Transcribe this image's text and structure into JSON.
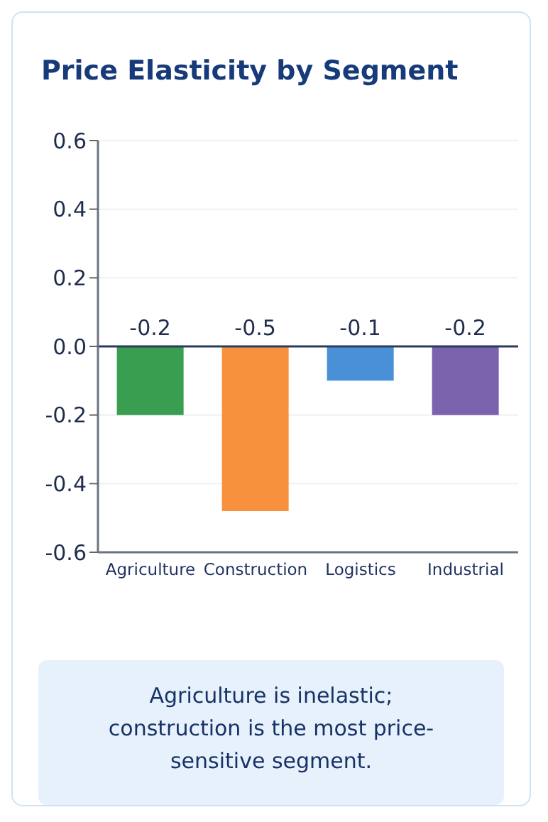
{
  "chart_data": {
    "type": "bar",
    "title": "Price Elasticity by Segment",
    "categories": [
      "Agriculture",
      "Construction",
      "Logistics",
      "Industrial"
    ],
    "values": [
      -0.2,
      -0.48,
      -0.1,
      -0.2
    ],
    "value_labels": [
      "-0.2",
      "-0.5",
      "-0.1",
      "-0.2"
    ],
    "colors": [
      "#3a9e50",
      "#f7913d",
      "#4a90d6",
      "#7b62ad"
    ],
    "ylim": [
      -0.6,
      0.6
    ],
    "yticks": [
      {
        "value": -0.6,
        "label": "-0.6"
      },
      {
        "value": -0.4,
        "label": "-0.4"
      },
      {
        "value": -0.2,
        "label": "-0.2"
      },
      {
        "value": 0,
        "label": "0.0"
      },
      {
        "value": 0.2,
        "label": "0.2"
      },
      {
        "value": 0.4,
        "label": "0.4"
      },
      {
        "value": 0.6,
        "label": "0.6"
      }
    ],
    "grid": "y",
    "ref_lines": [
      {
        "axis": "y",
        "value": 0,
        "color": "#2a3a5c"
      }
    ],
    "annotations": [
      "Agriculture is inelastic; construction is the most price-sensitive segment."
    ]
  }
}
